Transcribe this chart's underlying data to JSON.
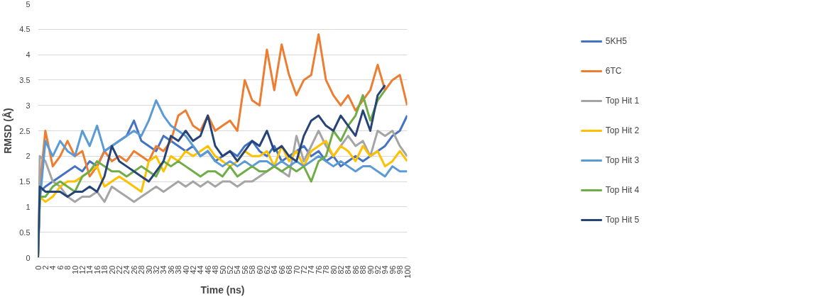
{
  "chart_data": {
    "type": "line",
    "xlabel": "Time (ns)",
    "ylabel": "RMSD (Å)",
    "x": [
      0,
      0.5,
      2,
      4,
      6,
      8,
      10,
      12,
      14,
      16,
      18,
      20,
      22,
      24,
      26,
      28,
      30,
      32,
      34,
      36,
      38,
      40,
      42,
      44,
      46,
      48,
      50,
      52,
      54,
      56,
      58,
      60,
      62,
      64,
      66,
      68,
      70,
      72,
      74,
      76,
      78,
      80,
      82,
      84,
      86,
      88,
      90,
      92,
      94,
      96,
      98,
      100
    ],
    "xlim": [
      0,
      100
    ],
    "xticks": [
      0,
      2,
      4,
      6,
      8,
      10,
      12,
      14,
      16,
      18,
      20,
      22,
      24,
      26,
      28,
      30,
      32,
      34,
      36,
      38,
      40,
      42,
      44,
      46,
      48,
      50,
      52,
      54,
      56,
      58,
      60,
      62,
      64,
      66,
      68,
      70,
      72,
      74,
      76,
      78,
      80,
      82,
      84,
      86,
      88,
      90,
      92,
      94,
      96,
      98,
      100
    ],
    "ylim": [
      0,
      5
    ],
    "yticks": [
      0,
      0.5,
      1,
      1.5,
      2,
      2.5,
      3,
      3.5,
      4,
      4.5,
      5
    ],
    "grid": "y",
    "legend": "right",
    "line_style": "solid",
    "series": [
      {
        "name": "5KH5",
        "color": "#4472c4",
        "values": [
          0,
          1.3,
          1.4,
          1.5,
          1.6,
          1.7,
          1.8,
          1.7,
          1.9,
          1.8,
          2.1,
          2.2,
          2.3,
          2.4,
          2.7,
          2.3,
          2.2,
          2.1,
          2.4,
          2.3,
          2.2,
          2.1,
          2.2,
          2.0,
          2.1,
          1.9,
          2.0,
          2.1,
          2.0,
          2.2,
          2.3,
          2.1,
          2.0,
          2.2,
          1.9,
          2.0,
          2.1,
          2.2,
          2.0,
          2.1,
          1.9,
          2.0,
          1.8,
          1.9,
          2.0,
          1.9,
          2.0,
          2.1,
          2.2,
          2.4,
          2.5,
          2.8
        ]
      },
      {
        "name": "6TC",
        "color": "#ed7d31",
        "values": [
          0,
          1.4,
          2.5,
          1.8,
          2.0,
          2.3,
          2.0,
          2.1,
          1.6,
          1.8,
          2.1,
          1.9,
          2.0,
          1.9,
          2.1,
          2.0,
          1.9,
          2.2,
          2.1,
          2.3,
          2.8,
          2.9,
          2.6,
          2.5,
          2.8,
          2.5,
          2.6,
          2.7,
          2.5,
          3.5,
          3.1,
          3.0,
          4.1,
          3.3,
          4.2,
          3.6,
          3.2,
          3.5,
          3.6,
          4.4,
          3.5,
          3.2,
          3.0,
          3.2,
          2.9,
          3.1,
          3.3,
          3.8,
          3.3,
          3.5,
          3.6,
          3.0
        ]
      },
      {
        "name": "Top Hit 1",
        "color": "#a5a5a5",
        "values": [
          0,
          2.0,
          1.9,
          1.5,
          1.4,
          1.2,
          1.1,
          1.2,
          1.2,
          1.3,
          1.1,
          1.4,
          1.3,
          1.2,
          1.1,
          1.2,
          1.3,
          1.4,
          1.3,
          1.4,
          1.5,
          1.4,
          1.5,
          1.4,
          1.5,
          1.4,
          1.5,
          1.5,
          1.4,
          1.5,
          1.5,
          1.6,
          1.7,
          1.8,
          1.7,
          1.6,
          2.4,
          1.9,
          2.2,
          2.5,
          2.2,
          2.0,
          2.2,
          2.4,
          2.2,
          2.3,
          2.0,
          2.5,
          2.4,
          2.5,
          2.2,
          2.0
        ]
      },
      {
        "name": "Top Hit 2",
        "color": "#ffc000",
        "values": [
          0,
          1.2,
          1.1,
          1.2,
          1.4,
          1.5,
          1.5,
          1.6,
          1.7,
          1.8,
          1.4,
          1.5,
          1.6,
          1.5,
          1.4,
          1.3,
          1.9,
          2.0,
          1.7,
          2.0,
          1.9,
          2.1,
          2.0,
          2.1,
          2.2,
          2.0,
          1.9,
          1.8,
          1.9,
          2.1,
          2.0,
          2.0,
          2.1,
          1.8,
          2.2,
          1.9,
          2.1,
          1.8,
          2.1,
          2.2,
          2.3,
          2.0,
          2.2,
          2.1,
          1.9,
          2.2,
          2.0,
          2.1,
          1.8,
          1.9,
          2.1,
          1.9
        ]
      },
      {
        "name": "Top Hit 3",
        "color": "#5b9bd5",
        "values": [
          0,
          1.1,
          2.3,
          2.0,
          2.3,
          2.1,
          2.0,
          2.5,
          2.2,
          2.6,
          2.1,
          2.2,
          2.3,
          2.4,
          2.5,
          2.4,
          2.7,
          3.1,
          2.8,
          2.6,
          2.5,
          2.4,
          2.2,
          2.0,
          2.1,
          1.9,
          1.8,
          1.9,
          1.8,
          1.9,
          1.8,
          1.9,
          1.9,
          1.8,
          1.9,
          1.8,
          1.9,
          1.8,
          1.9,
          2.0,
          1.9,
          1.8,
          1.9,
          1.8,
          1.7,
          1.8,
          1.8,
          1.7,
          1.6,
          1.8,
          1.7,
          1.7
        ]
      },
      {
        "name": "Top Hit 4",
        "color": "#70ad47",
        "values": [
          0,
          1.2,
          1.2,
          1.4,
          1.5,
          1.4,
          1.3,
          1.6,
          1.7,
          1.9,
          1.8,
          1.7,
          1.7,
          1.6,
          1.7,
          1.8,
          1.7,
          1.6,
          1.9,
          1.8,
          1.9,
          1.8,
          1.7,
          1.6,
          1.7,
          1.7,
          1.6,
          1.8,
          1.6,
          1.7,
          1.8,
          1.7,
          1.7,
          1.8,
          1.7,
          1.8,
          1.7,
          1.8,
          1.5,
          1.9,
          2.0,
          2.5,
          2.3,
          2.6,
          2.8,
          3.2,
          2.7,
          3.1,
          3.3,
          null,
          null,
          null
        ]
      },
      {
        "name": "Top Hit 5",
        "color": "#264478",
        "values": [
          0,
          1.4,
          1.3,
          1.3,
          1.3,
          1.2,
          1.3,
          1.3,
          1.4,
          1.3,
          1.6,
          2.2,
          1.9,
          1.8,
          1.7,
          1.6,
          1.5,
          1.7,
          1.9,
          2.4,
          2.3,
          2.5,
          2.3,
          2.4,
          2.8,
          2.2,
          2.0,
          2.1,
          1.9,
          2.1,
          2.3,
          2.2,
          2.5,
          2.1,
          2.2,
          2.0,
          1.9,
          2.4,
          2.7,
          2.8,
          2.6,
          2.5,
          2.8,
          2.6,
          2.4,
          2.9,
          2.5,
          3.2,
          3.4,
          null,
          null,
          null
        ]
      }
    ]
  }
}
